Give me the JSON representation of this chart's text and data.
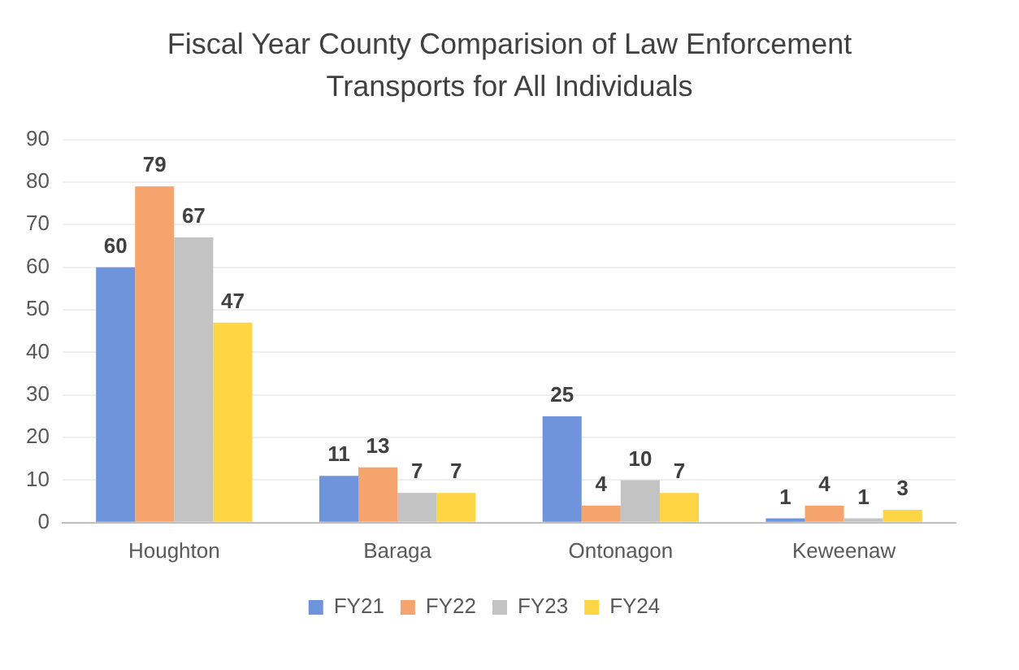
{
  "chart_data": {
    "type": "bar",
    "title": "Fiscal Year County Comparision of Law Enforcement Transports for All Individuals",
    "categories": [
      "Houghton",
      "Baraga",
      "Ontonagon",
      "Keweenaw"
    ],
    "series": [
      {
        "name": "FY21",
        "color": "#6f94dc",
        "values": [
          60,
          11,
          25,
          1
        ]
      },
      {
        "name": "FY22",
        "color": "#f6a46e",
        "values": [
          79,
          13,
          4,
          4
        ]
      },
      {
        "name": "FY23",
        "color": "#c3c3c3",
        "values": [
          67,
          7,
          10,
          1
        ]
      },
      {
        "name": "FY24",
        "color": "#fdd545",
        "values": [
          47,
          7,
          7,
          3
        ]
      }
    ],
    "ylim": [
      0,
      90
    ],
    "yticks": [
      0,
      10,
      20,
      30,
      40,
      50,
      60,
      70,
      80,
      90
    ],
    "grid": "y",
    "legend": "bottom",
    "data_labels": true
  }
}
